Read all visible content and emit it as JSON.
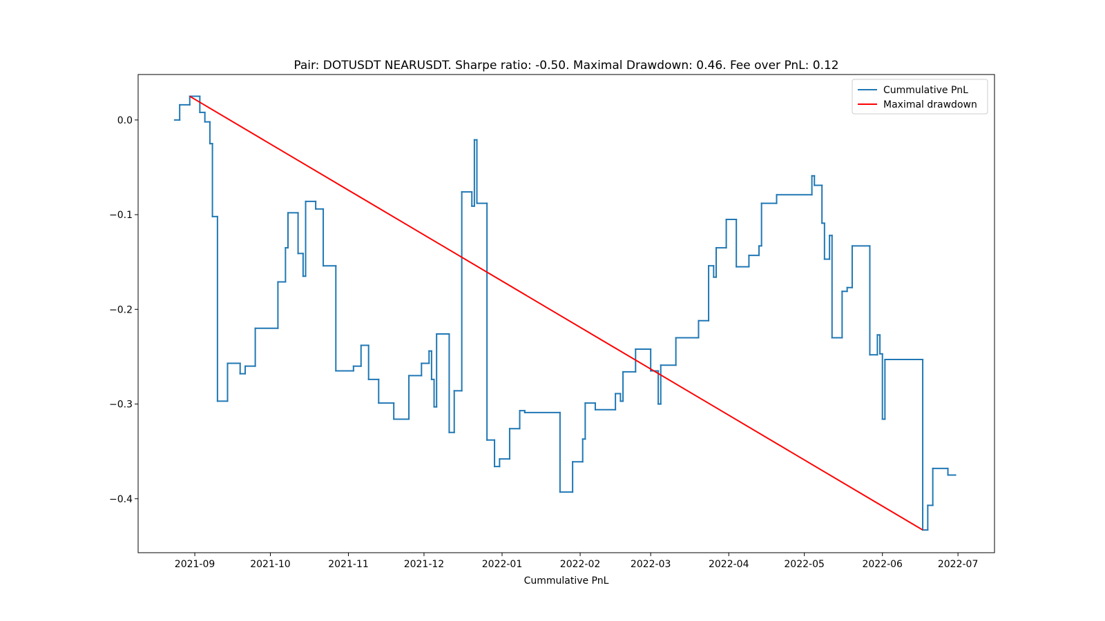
{
  "chart_data": {
    "type": "line",
    "title": "Pair: DOTUSDT NEARUSDT. Sharpe ratio: -0.50. Maximal Drawdown: 0.46. Fee over PnL: 0.12",
    "xlabel": "Cummulative PnL",
    "legend": "upper right",
    "xlim": [
      18848.5,
      19188.5
    ],
    "ylim": [
      -0.457,
      0.048
    ],
    "xticks": [
      {
        "value": 18871,
        "label": "2021-09"
      },
      {
        "value": 18901,
        "label": "2021-10"
      },
      {
        "value": 18932,
        "label": "2021-11"
      },
      {
        "value": 18962,
        "label": "2021-12"
      },
      {
        "value": 18993,
        "label": "2022-01"
      },
      {
        "value": 19024,
        "label": "2022-02"
      },
      {
        "value": 19052,
        "label": "2022-03"
      },
      {
        "value": 19083,
        "label": "2022-04"
      },
      {
        "value": 19113,
        "label": "2022-05"
      },
      {
        "value": 19144,
        "label": "2022-06"
      },
      {
        "value": 19174,
        "label": "2022-07"
      }
    ],
    "yticks": [
      {
        "value": 0,
        "label": "0.0"
      },
      {
        "value": -0.1,
        "label": "−0.1"
      },
      {
        "value": -0.2,
        "label": "−0.2"
      },
      {
        "value": -0.3,
        "label": "−0.3"
      },
      {
        "value": -0.4,
        "label": "−0.4"
      }
    ],
    "series": [
      {
        "name": "Cummulative PnL",
        "color": "#1f77b4",
        "drawstyle": "steps-post",
        "x": [
          18863,
          18865,
          18869,
          18873,
          18875,
          18877,
          18878,
          18880,
          18884,
          18889,
          18891,
          18895,
          18904,
          18907,
          18908,
          18912,
          18914,
          18915,
          18919,
          18922,
          18927,
          18934,
          18937,
          18940,
          18944,
          18950,
          18956,
          18961,
          18964,
          18965,
          18966,
          18967,
          18972,
          18974,
          18977,
          18981,
          18982,
          18983,
          18987,
          18990,
          18992,
          18996,
          19000,
          19002,
          19016,
          19021,
          19025,
          19026,
          19030,
          19038,
          19040,
          19041,
          19046,
          19052,
          19055,
          19056,
          19062,
          19071,
          19075,
          19077,
          19078,
          19082,
          19086,
          19091,
          19095,
          19096,
          19102,
          19116,
          19117,
          19120,
          19121,
          19123,
          19124,
          19128,
          19130,
          19132,
          19139,
          19142,
          19143,
          19144,
          19145,
          19160,
          19162,
          19164,
          19170,
          19173
        ],
        "values": [
          0,
          0.016,
          0.025,
          0.008,
          -0.002,
          -0.025,
          -0.102,
          -0.297,
          -0.257,
          -0.268,
          -0.26,
          -0.22,
          -0.171,
          -0.135,
          -0.098,
          -0.141,
          -0.165,
          -0.086,
          -0.094,
          -0.154,
          -0.265,
          -0.26,
          -0.238,
          -0.274,
          -0.299,
          -0.316,
          -0.27,
          -0.257,
          -0.244,
          -0.274,
          -0.303,
          -0.226,
          -0.33,
          -0.286,
          -0.076,
          -0.091,
          -0.021,
          -0.088,
          -0.338,
          -0.366,
          -0.358,
          -0.326,
          -0.307,
          -0.309,
          -0.393,
          -0.361,
          -0.337,
          -0.299,
          -0.306,
          -0.289,
          -0.297,
          -0.266,
          -0.242,
          -0.265,
          -0.3,
          -0.259,
          -0.23,
          -0.212,
          -0.154,
          -0.166,
          -0.135,
          -0.105,
          -0.155,
          -0.143,
          -0.133,
          -0.088,
          -0.079,
          -0.059,
          -0.069,
          -0.109,
          -0.147,
          -0.122,
          -0.23,
          -0.181,
          -0.177,
          -0.133,
          -0.248,
          -0.227,
          -0.247,
          -0.316,
          -0.253,
          -0.433,
          -0.407,
          -0.368,
          -0.375,
          -0.375
        ]
      },
      {
        "name": "Maximal drawdown",
        "color": "#ff0000",
        "drawstyle": "default",
        "x": [
          18869,
          19160
        ],
        "values": [
          0.025,
          -0.433
        ]
      }
    ]
  }
}
